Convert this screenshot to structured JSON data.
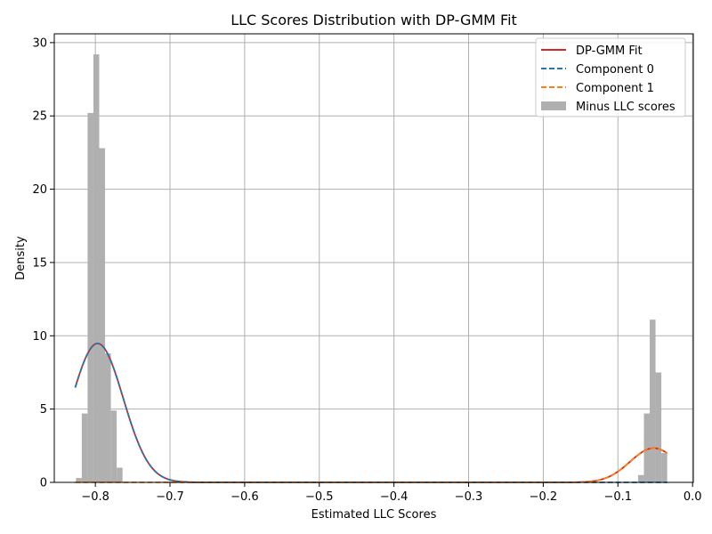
{
  "chart_data": {
    "type": "histogram+line",
    "title": "LLC Scores Distribution with DP-GMM Fit",
    "xlabel": "Estimated LLC Scores",
    "ylabel": "Density",
    "xlim": [
      -0.855,
      0.001
    ],
    "ylim": [
      0,
      30.6
    ],
    "xticks": [
      -0.8,
      -0.7,
      -0.6,
      -0.5,
      -0.4,
      -0.3,
      -0.2,
      -0.1,
      0.0
    ],
    "xtick_labels": [
      "−0.8",
      "−0.7",
      "−0.6",
      "−0.5",
      "−0.4",
      "−0.3",
      "−0.2",
      "−0.1",
      "0.0"
    ],
    "yticks": [
      0,
      5,
      10,
      15,
      20,
      25,
      30
    ],
    "ytick_labels": [
      "0",
      "5",
      "10",
      "15",
      "20",
      "25",
      "30"
    ],
    "grid": true,
    "legend_position": "top-right",
    "histogram": {
      "name": "Minus LLC scores",
      "color": "#b0b0b0",
      "bin_width": 0.0078,
      "bins": [
        {
          "x0": -0.826,
          "x1": -0.8182,
          "density": 0.3
        },
        {
          "x0": -0.8182,
          "x1": -0.8104,
          "density": 4.7
        },
        {
          "x0": -0.8104,
          "x1": -0.8026,
          "density": 25.2
        },
        {
          "x0": -0.8026,
          "x1": -0.7948,
          "density": 29.2
        },
        {
          "x0": -0.7948,
          "x1": -0.787,
          "density": 22.8
        },
        {
          "x0": -0.787,
          "x1": -0.7792,
          "density": 8.8
        },
        {
          "x0": -0.7792,
          "x1": -0.7714,
          "density": 4.9
        },
        {
          "x0": -0.7714,
          "x1": -0.7636,
          "density": 1.0
        },
        {
          "x0": -0.073,
          "x1": -0.0652,
          "density": 0.5
        },
        {
          "x0": -0.0652,
          "x1": -0.0574,
          "density": 4.7
        },
        {
          "x0": -0.0574,
          "x1": -0.0496,
          "density": 11.1
        },
        {
          "x0": -0.0496,
          "x1": -0.0418,
          "density": 7.5
        },
        {
          "x0": -0.0418,
          "x1": -0.034,
          "density": 2.0
        }
      ]
    },
    "series": [
      {
        "name": "DP-GMM Fit",
        "color": "#d62728",
        "style": "solid",
        "components": [
          {
            "weight": 0.815,
            "mean": -0.797,
            "std": 0.0343
          },
          {
            "weight": 0.185,
            "mean": -0.052,
            "std": 0.0316
          }
        ]
      },
      {
        "name": "Component 0",
        "color": "#1f77b4",
        "style": "dashed",
        "components": [
          {
            "weight": 0.815,
            "mean": -0.797,
            "std": 0.0343
          }
        ]
      },
      {
        "name": "Component 1",
        "color": "#ff7f0e",
        "style": "dashed",
        "components": [
          {
            "weight": 0.185,
            "mean": -0.052,
            "std": 0.0316
          }
        ]
      }
    ],
    "curve_x_range": [
      -0.827,
      -0.034
    ]
  }
}
